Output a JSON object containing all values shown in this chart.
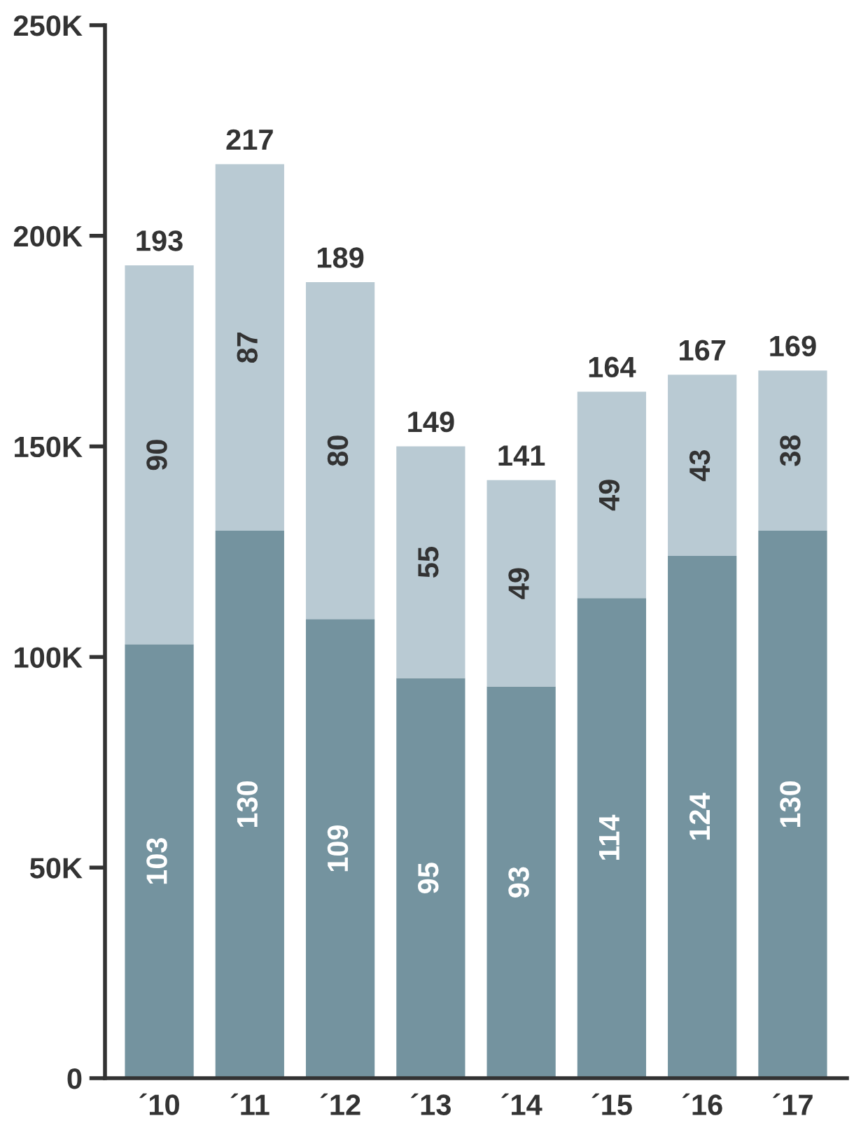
{
  "chart_data": {
    "type": "bar",
    "stacked": true,
    "categories": [
      "´10",
      "´11",
      "´12",
      "´13",
      "´14",
      "´15",
      "´16",
      "´17"
    ],
    "series": [
      {
        "color": "#74939f",
        "values": [
          103,
          130,
          109,
          95,
          93,
          114,
          124,
          130
        ]
      },
      {
        "color": "#b9cad3",
        "values": [
          90,
          87,
          80,
          55,
          49,
          49,
          43,
          38
        ]
      }
    ],
    "ylim": [
      0,
      250
    ],
    "yticks": [
      0,
      {
        "value": 50,
        "label": "50K"
      },
      {
        "value": 100,
        "label": "100K"
      },
      {
        "value": 150,
        "label": "150K"
      },
      {
        "value": 200,
        "label": "200K"
      },
      {
        "value": 250,
        "label": "250K"
      }
    ],
    "data_labels": true,
    "totals": [
      "193",
      "217",
      "189",
      "149",
      "141",
      "164",
      "167",
      "169"
    ],
    "grid": false,
    "legend": false
  }
}
